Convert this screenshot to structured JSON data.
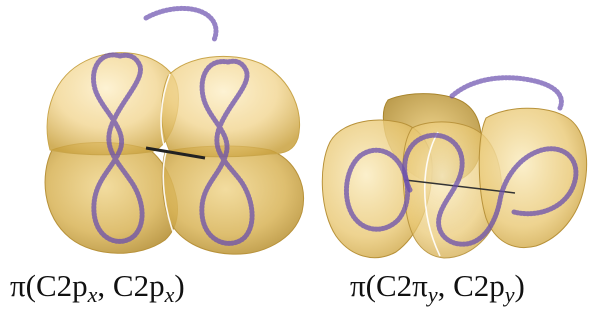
{
  "panels": [
    {
      "caption": {
        "prefix": "π(C2p",
        "sub1": "x",
        "middle": ", C2p",
        "sub2": "x",
        "suffix": ")"
      }
    },
    {
      "caption": {
        "prefix": "π(C2π",
        "sub1": "y",
        "middle": ", C2p",
        "sub2": "y",
        "suffix": ")"
      }
    }
  ],
  "colors": {
    "lobe_light": "#f6dda0",
    "lobe_mid": "#e8c470",
    "lobe_dark": "#c9a13e",
    "lobe_edge": "#b8923a",
    "dots": "#6a4fae",
    "axis": "#222222"
  }
}
